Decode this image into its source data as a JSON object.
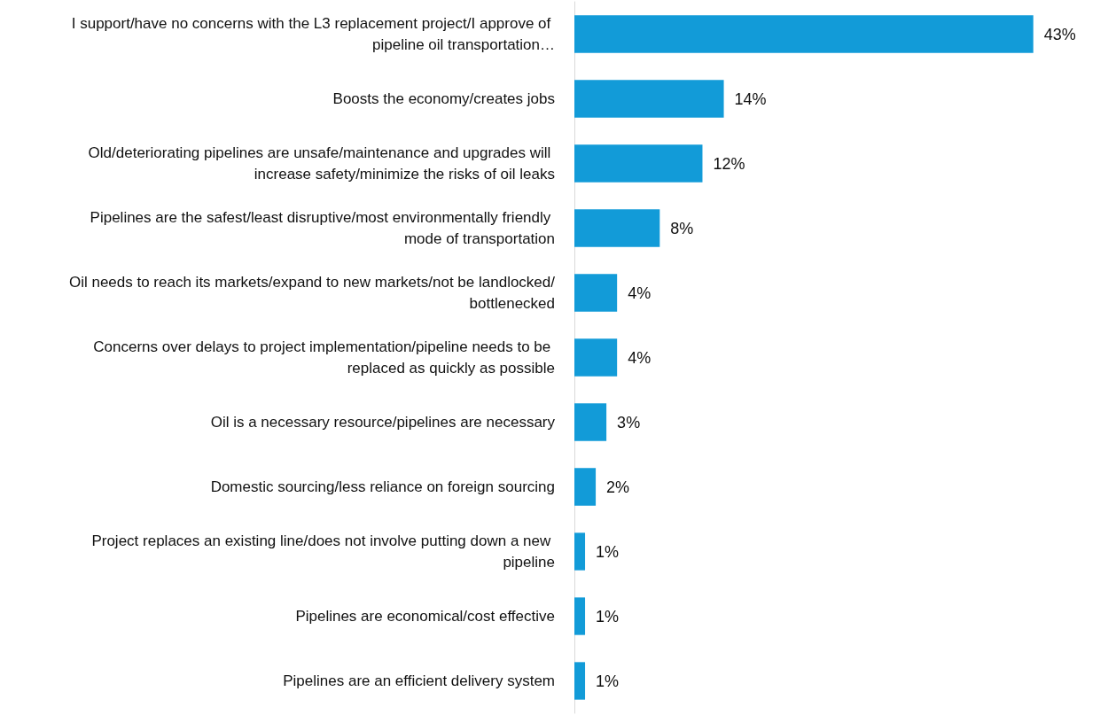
{
  "chart_data": {
    "type": "bar",
    "orientation": "horizontal",
    "value_labels": [
      "43%",
      "14%",
      "12%",
      "8%",
      "4%",
      "4%",
      "3%",
      "2%",
      "1%",
      "1%",
      "1%"
    ],
    "categories": [
      "I support/have no concerns with the L3 replacement project/I approve of pipeline oil transportation…",
      "Boosts the economy/creates jobs",
      "Old/deteriorating pipelines are unsafe/maintenance and upgrades will increase safety/minimize the risks of oil leaks",
      "Pipelines are the safest/least disruptive/most environmentally friendly mode of transportation",
      "Oil needs to reach its markets/expand to new markets/not be landlocked/bottlenecked",
      "Concerns over delays to project implementation/pipeline needs to be replaced as quickly as possible",
      "Oil is a necessary resource/pipelines are necessary",
      "Domestic sourcing/less reliance on foreign sourcing",
      "Project replaces an existing line/does not involve putting down a new pipeline",
      "Pipelines are economical/cost effective",
      "Pipelines are an efficient delivery system"
    ],
    "values": [
      43,
      14,
      12,
      8,
      4,
      4,
      3,
      2,
      1,
      1,
      1
    ],
    "color": "#129bd8"
  }
}
